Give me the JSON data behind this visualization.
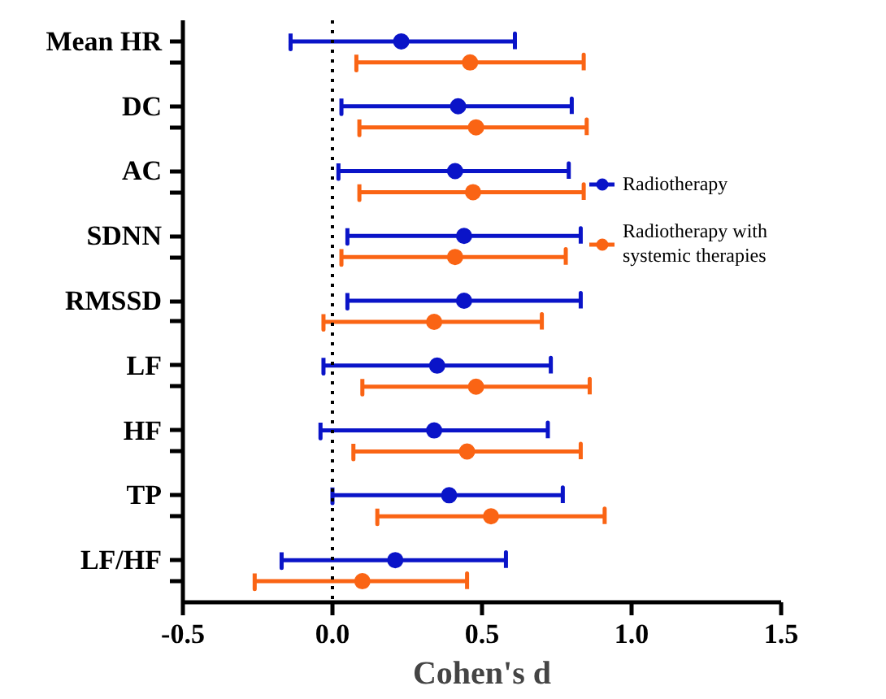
{
  "chart_data": {
    "type": "scatter",
    "orientation": "horizontal",
    "xlabel": "Cohen's d",
    "categories": [
      "Mean HR",
      "DC",
      "AC",
      "SDNN",
      "RMSSD",
      "LF",
      "HF",
      "TP",
      "LF/HF"
    ],
    "series": [
      {
        "name": "Radiotherapy",
        "color": "#0a14c8",
        "values": [
          0.23,
          0.42,
          0.41,
          0.44,
          0.44,
          0.35,
          0.34,
          0.39,
          0.21
        ],
        "errors": [
          [
            -0.14,
            0.61
          ],
          [
            0.03,
            0.8
          ],
          [
            0.02,
            0.79
          ],
          [
            0.05,
            0.83
          ],
          [
            0.05,
            0.83
          ],
          [
            -0.03,
            0.73
          ],
          [
            -0.04,
            0.72
          ],
          [
            0.0,
            0.77
          ],
          [
            -0.17,
            0.58
          ]
        ]
      },
      {
        "name": "Radiotherapy with systemic therapies",
        "color": "#fa6414",
        "values": [
          0.46,
          0.48,
          0.47,
          0.41,
          0.34,
          0.48,
          0.45,
          0.53,
          0.1
        ],
        "errors": [
          [
            0.08,
            0.84
          ],
          [
            0.09,
            0.85
          ],
          [
            0.09,
            0.84
          ],
          [
            0.03,
            0.78
          ],
          [
            -0.03,
            0.7
          ],
          [
            0.1,
            0.86
          ],
          [
            0.07,
            0.83
          ],
          [
            0.15,
            0.91
          ],
          [
            -0.26,
            0.45
          ]
        ]
      }
    ],
    "xlim": [
      -0.5,
      1.5
    ],
    "xticks": [
      {
        "value": -0.5,
        "label": "-0.5"
      },
      {
        "value": 0,
        "label": "0.0"
      },
      {
        "value": 0.5,
        "label": "0.5"
      },
      {
        "value": 1.0,
        "label": "1.0"
      },
      {
        "value": 1.5,
        "label": "1.5"
      }
    ],
    "ref_lines": [
      {
        "axis": "x",
        "value": 0,
        "color": "#000000",
        "line_style": "dotted"
      }
    ],
    "marker": "circle",
    "grid": false,
    "legend": "right"
  }
}
